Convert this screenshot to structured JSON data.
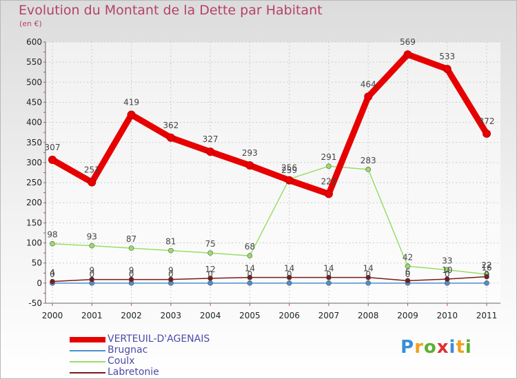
{
  "title": "Evolution du Montant de la Dette par Habitant",
  "subtitle": "(en €)",
  "logo": "Proxiti",
  "colors": {
    "title": "#b5416b",
    "legend_text": "#4a4aa8",
    "verteuil": "#e60000",
    "brugnac": "#4a8fd0",
    "coulx": "#99dd66",
    "labretonie": "#7a1a1a"
  },
  "chart_data": {
    "type": "line",
    "title": "Evolution du Montant de la Dette par Habitant",
    "ylabel": "(en €)",
    "x": [
      "2000",
      "2001",
      "2002",
      "2003",
      "2004",
      "2005",
      "2006",
      "2007",
      "2008",
      "2009",
      "2010",
      "2011"
    ],
    "ylim": [
      -50,
      600
    ],
    "yticks": [
      -50,
      0,
      50,
      100,
      150,
      200,
      250,
      300,
      350,
      400,
      450,
      500,
      550,
      600
    ],
    "grid": true,
    "legend": "bottom-left",
    "series": [
      {
        "name": "VERTEUIL-D'AGENAIS",
        "color": "#e60000",
        "values": [
          307,
          251,
          419,
          362,
          327,
          293,
          256,
          222,
          464,
          569,
          533,
          372
        ],
        "labels": [
          "307",
          "251",
          "419",
          "362",
          "327",
          "293",
          "256",
          "222",
          "464",
          "569",
          "533",
          "372"
        ]
      },
      {
        "name": "Brugnac",
        "color": "#4a8fd0",
        "values": [
          0,
          0,
          0,
          0,
          0,
          0,
          0,
          0,
          0,
          0,
          0,
          0
        ],
        "labels": [
          "0",
          "0",
          "0",
          "0",
          "0",
          "0",
          "0",
          "0",
          "0",
          "0",
          "0",
          "0"
        ]
      },
      {
        "name": "Coulx",
        "color": "#99dd66",
        "values": [
          98,
          93,
          87,
          81,
          75,
          68,
          259,
          291,
          283,
          42,
          33,
          22
        ],
        "labels": [
          "98",
          "93",
          "87",
          "81",
          "75",
          "68",
          "259",
          "291",
          "283",
          "42",
          "33",
          "22"
        ]
      },
      {
        "name": "Labretonie",
        "color": "#7a1a1a",
        "values": [
          4,
          9,
          9,
          9,
          12,
          14,
          14,
          14,
          14,
          6,
          10,
          16
        ],
        "labels": [
          "4",
          "9",
          "9",
          "9",
          "12",
          "14",
          "14",
          "14",
          "14",
          "6",
          "10",
          "16"
        ]
      }
    ]
  }
}
